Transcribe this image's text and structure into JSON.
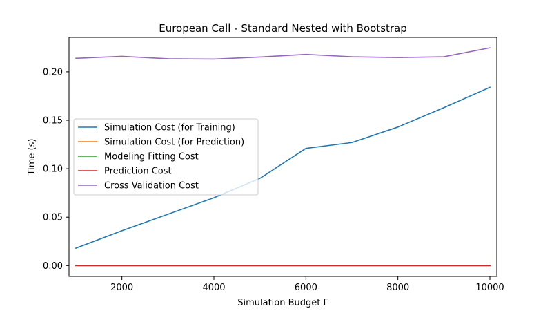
{
  "chart_data": {
    "type": "line",
    "title": "European Call - Standard Nested with Bootstrap",
    "xlabel": "Simulation Budget Γ",
    "ylabel": "Time (s)",
    "xlim": [
      850,
      10150
    ],
    "ylim": [
      -0.0112,
      0.2356
    ],
    "xticks": [
      2000,
      4000,
      6000,
      8000,
      10000
    ],
    "xtick_labels": [
      "2000",
      "4000",
      "6000",
      "8000",
      "10000"
    ],
    "yticks": [
      0.0,
      0.05,
      0.1,
      0.15,
      0.2
    ],
    "ytick_labels": [
      "0.00",
      "0.05",
      "0.10",
      "0.15",
      "0.20"
    ],
    "grid": false,
    "legend_position": "center-left",
    "x": [
      1000,
      2000,
      3000,
      4000,
      5000,
      6000,
      7000,
      8000,
      9000,
      10000
    ],
    "series": [
      {
        "name": "Simulation Cost (for Training)",
        "color": "#1f77b4",
        "values": [
          0.018,
          0.036,
          0.053,
          0.07,
          0.09,
          0.121,
          0.127,
          0.143,
          0.163,
          0.184
        ]
      },
      {
        "name": "Simulation Cost (for Prediction)",
        "color": "#ff7f0e",
        "values": [
          0.0,
          0.0,
          0.0,
          0.0,
          0.0,
          0.0,
          0.0,
          0.0,
          0.0,
          0.0
        ]
      },
      {
        "name": "Modeling Fitting Cost",
        "color": "#2ca02c",
        "values": [
          0.0,
          0.0,
          0.0,
          0.0,
          0.0,
          0.0,
          0.0,
          0.0,
          0.0,
          0.0
        ]
      },
      {
        "name": "Prediction Cost",
        "color": "#d62728",
        "values": [
          0.0,
          0.0,
          0.0,
          0.0,
          0.0,
          0.0,
          0.0,
          0.0,
          0.0,
          0.0
        ]
      },
      {
        "name": "Cross Validation Cost",
        "color": "#9467bd",
        "values": [
          0.214,
          0.216,
          0.2135,
          0.2132,
          0.2153,
          0.218,
          0.2156,
          0.2148,
          0.2156,
          0.2248
        ]
      }
    ]
  }
}
